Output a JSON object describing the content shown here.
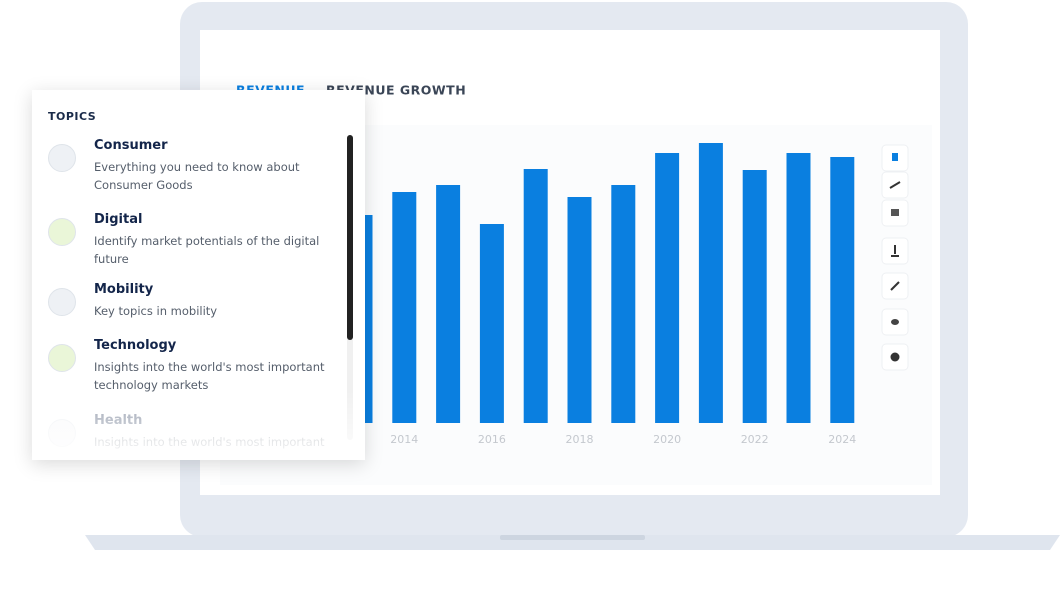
{
  "tabs": [
    "REVENUE",
    "REVENUE GROWTH"
  ],
  "topics": {
    "title": "TOPICS",
    "items": [
      {
        "name": "Consumer",
        "description": "Everything you need to know about Consumer Goods"
      },
      {
        "name": "Digital",
        "description": "Identify market potentials of the digital future"
      },
      {
        "name": "Mobility",
        "description": "Key topics in mobility"
      },
      {
        "name": "Technology",
        "description": "Insights into the world's most important technology markets"
      },
      {
        "name": "Health",
        "description": "Insights into the world's most important"
      }
    ]
  },
  "chart_data": {
    "type": "bar",
    "color": "#0a7fe0",
    "categories": [
      null,
      "2014",
      null,
      "2016",
      null,
      "2018",
      null,
      "2020",
      null,
      "2022",
      null,
      "2024"
    ],
    "values": [
      208,
      231,
      238,
      199,
      254,
      226,
      238,
      270,
      280,
      253,
      270,
      266
    ],
    "ylim": [
      0,
      300
    ]
  }
}
